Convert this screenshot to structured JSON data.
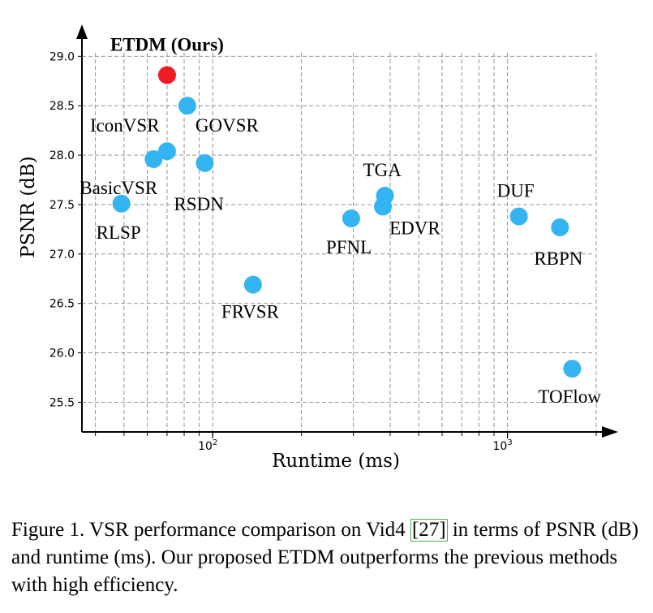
{
  "chart_data": {
    "type": "scatter",
    "xlabel": "Runtime (ms)",
    "ylabel": "PSNR (dB)",
    "xscale": "log",
    "xlim": [
      36,
      2000
    ],
    "ylim": [
      25.2,
      29.2
    ],
    "yticks": [
      "25.5",
      "26.0",
      "26.5",
      "27.0",
      "27.5",
      "28.0",
      "28.5",
      "29.0"
    ],
    "xticks": [
      {
        "value": 100,
        "base": "10",
        "exp": "2"
      },
      {
        "value": 1000,
        "base": "10",
        "exp": "3"
      }
    ],
    "grid": true,
    "points": [
      {
        "name": "ETDM (Ours)",
        "x": 70,
        "y": 28.81,
        "color": "#ee1c25",
        "bold": true
      },
      {
        "name": "GOVSR",
        "x": 82,
        "y": 28.5,
        "color": "#35b4f2"
      },
      {
        "name": "IconVSR",
        "x": 70,
        "y": 28.04,
        "color": "#35b4f2"
      },
      {
        "name": "BasicVSR",
        "x": 63,
        "y": 27.96,
        "color": "#35b4f2"
      },
      {
        "name": "RSDN",
        "x": 94,
        "y": 27.92,
        "color": "#35b4f2"
      },
      {
        "name": "RLSP",
        "x": 49,
        "y": 27.51,
        "color": "#35b4f2"
      },
      {
        "name": "FRVSR",
        "x": 137,
        "y": 26.69,
        "color": "#35b4f2"
      },
      {
        "name": "TGA",
        "x": 384,
        "y": 27.59,
        "color": "#35b4f2"
      },
      {
        "name": "EDVR",
        "x": 378,
        "y": 27.48,
        "color": "#35b4f2"
      },
      {
        "name": "PFNL",
        "x": 295,
        "y": 27.36,
        "color": "#35b4f2"
      },
      {
        "name": "DUF",
        "x": 1093,
        "y": 27.38,
        "color": "#35b4f2"
      },
      {
        "name": "RBPN",
        "x": 1507,
        "y": 27.27,
        "color": "#35b4f2"
      },
      {
        "name": "TOFlow",
        "x": 1658,
        "y": 25.84,
        "color": "#35b4f2"
      }
    ]
  },
  "caption": {
    "before": "Figure 1. VSR performance comparison on Vid4 ",
    "open_bracket": "[",
    "cite": "27",
    "close_bracket": "]",
    "after": " in terms of PSNR (dB) and runtime (ms). Our proposed ETDM outperforms the previous methods with high efficiency."
  }
}
